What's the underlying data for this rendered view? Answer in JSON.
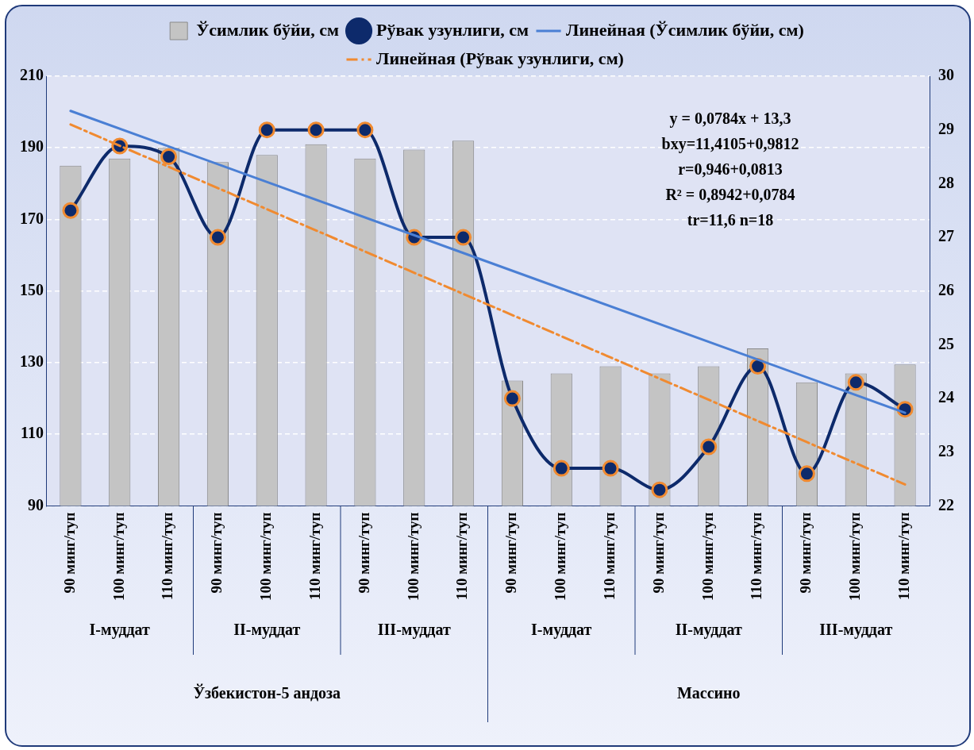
{
  "chart_data": {
    "type": "bar",
    "categories": [
      "90 минг/туп",
      "100 минг/туп",
      "110 минг/туп",
      "90 минг/туп",
      "100 минг/туп",
      "110 минг/туп",
      "90 минг/туп",
      "100 минг/туп",
      "110 минг/туп",
      "90 минг/туп",
      "100 минг/туп",
      "110 минг/туп",
      "90 минг/туп",
      "100 минг/туп",
      "110 минг/туп",
      "90 минг/туп",
      "100 минг/туп",
      "110 минг/туп"
    ],
    "series": [
      {
        "name": "Ўсимлик бўйи, см",
        "color": "#c4c4c4",
        "values": [
          185,
          187,
          190,
          186,
          188,
          191,
          187,
          189.5,
          192,
          125,
          127,
          129,
          127,
          129,
          134,
          124.5,
          127,
          129.5
        ]
      },
      {
        "name": "Рўвак узунлиги, см",
        "type": "line",
        "axis": "y2",
        "color": "#0d2a6b",
        "marker": "circle",
        "values": [
          27.5,
          28.7,
          28.5,
          27.0,
          29.0,
          29.0,
          29.0,
          27.0,
          27.0,
          24.0,
          22.7,
          22.7,
          22.3,
          23.1,
          24.6,
          22.6,
          24.3,
          23.8
        ]
      },
      {
        "name": "Линейная (Ўсимлик бўйи, см)",
        "type": "line",
        "color": "#4a7fd4",
        "marker": "none",
        "line_style": "solid",
        "values": [
          200.3,
          null,
          null,
          null,
          null,
          null,
          null,
          null,
          null,
          null,
          null,
          null,
          null,
          null,
          null,
          null,
          null,
          116
        ]
      },
      {
        "name": "Линейная (Рўвак узунлиги, см)",
        "type": "line",
        "axis": "y2",
        "color": "#f08a30",
        "marker": "none",
        "line_style": "dashed",
        "values": [
          29.1,
          null,
          null,
          null,
          null,
          null,
          null,
          null,
          null,
          null,
          null,
          null,
          null,
          null,
          null,
          null,
          null,
          22.4
        ]
      }
    ],
    "ylim": [
      90,
      210
    ],
    "yticks": [
      90,
      110,
      130,
      150,
      170,
      190,
      210
    ],
    "y2lim": [
      22,
      30
    ],
    "y2ticks": [
      22,
      23,
      24,
      25,
      26,
      27,
      28,
      29,
      30
    ],
    "grid": "y",
    "legend": "top",
    "annotations": [
      "I-муддат",
      "II-муддат",
      "III-муддат",
      "I-муддат",
      "II-муддат",
      "III-муддат",
      "Ўзбекистон-5 андоза",
      "Массино",
      "y = 0,0784x + 13,3",
      "bxy=11,4105+0,9812",
      "r=0,946+0,0813",
      "R² = 0,8942+0,0784",
      "tr=11,6 n=18"
    ]
  }
}
